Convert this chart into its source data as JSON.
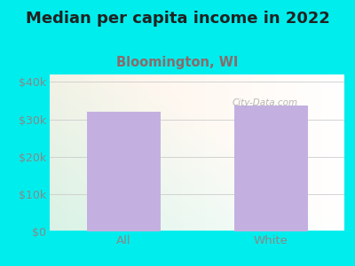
{
  "title": "Median per capita income in 2022",
  "subtitle": "Bloomington, WI",
  "categories": [
    "All",
    "White"
  ],
  "values": [
    32100,
    33800
  ],
  "bar_color": "#C4B0E0",
  "background_color": "#00EDED",
  "title_fontsize": 13,
  "title_color": "#222222",
  "subtitle_fontsize": 10.5,
  "subtitle_color": "#8B6A6A",
  "tick_color": "#888888",
  "ylim": [
    0,
    42000
  ],
  "yticks": [
    0,
    10000,
    20000,
    30000,
    40000
  ],
  "ytick_labels": [
    "$0",
    "$10k",
    "$20k",
    "$30k",
    "$40k"
  ],
  "watermark_text": "City-Data.com",
  "watermark_color": "#aaaaaa",
  "plot_bg_colors": [
    "#d4f0e0",
    "#e8f8ee",
    "#eaf5f0",
    "#f5faff",
    "#f8fbff"
  ],
  "grid_color": "#cccccc"
}
